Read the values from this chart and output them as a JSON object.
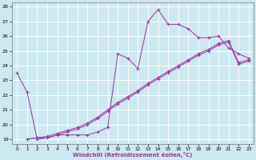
{
  "xlabel": "Windchill (Refroidissement éolien,°C)",
  "bg_color": "#cce8f0",
  "grid_color": "#ffffff",
  "line_color": "#993399",
  "xlim": [
    -0.5,
    23.5
  ],
  "ylim": [
    18.7,
    28.3
  ],
  "xticks": [
    0,
    1,
    2,
    3,
    4,
    5,
    6,
    7,
    8,
    9,
    10,
    11,
    12,
    13,
    14,
    15,
    16,
    17,
    18,
    19,
    20,
    21,
    22,
    23
  ],
  "yticks": [
    19,
    20,
    21,
    22,
    23,
    24,
    25,
    26,
    27,
    28
  ],
  "series1_x": [
    0,
    1,
    2,
    3,
    4,
    5,
    6,
    7,
    8,
    9,
    10,
    11,
    12,
    13,
    14,
    15,
    16,
    17,
    18,
    19,
    20,
    21,
    22,
    23
  ],
  "series1_y": [
    23.5,
    22.2,
    19.0,
    19.1,
    19.3,
    19.3,
    19.3,
    19.3,
    19.5,
    19.8,
    24.8,
    24.5,
    23.8,
    27.0,
    27.8,
    26.8,
    26.8,
    26.5,
    25.9,
    25.9,
    26.0,
    25.2,
    24.8,
    24.5
  ],
  "series2_x": [
    1,
    2,
    3,
    4,
    5,
    6,
    7,
    8,
    9,
    10,
    11,
    12,
    13,
    14,
    15,
    16,
    17,
    18,
    19,
    20,
    21,
    22,
    23
  ],
  "series2_y": [
    19.0,
    19.1,
    19.1,
    19.3,
    19.5,
    19.7,
    20.0,
    20.4,
    20.9,
    21.4,
    21.8,
    22.2,
    22.7,
    23.1,
    23.5,
    23.9,
    24.3,
    24.7,
    25.0,
    25.4,
    25.6,
    24.1,
    24.3
  ],
  "series3_x": [
    1,
    2,
    3,
    4,
    5,
    6,
    7,
    8,
    9,
    10,
    11,
    12,
    13,
    14,
    15,
    16,
    17,
    18,
    19,
    20,
    21,
    22,
    23
  ],
  "series3_y": [
    19.0,
    19.1,
    19.2,
    19.4,
    19.6,
    19.8,
    20.1,
    20.5,
    21.0,
    21.5,
    21.9,
    22.3,
    22.8,
    23.2,
    23.6,
    24.0,
    24.4,
    24.8,
    25.1,
    25.5,
    25.7,
    24.2,
    24.4
  ]
}
